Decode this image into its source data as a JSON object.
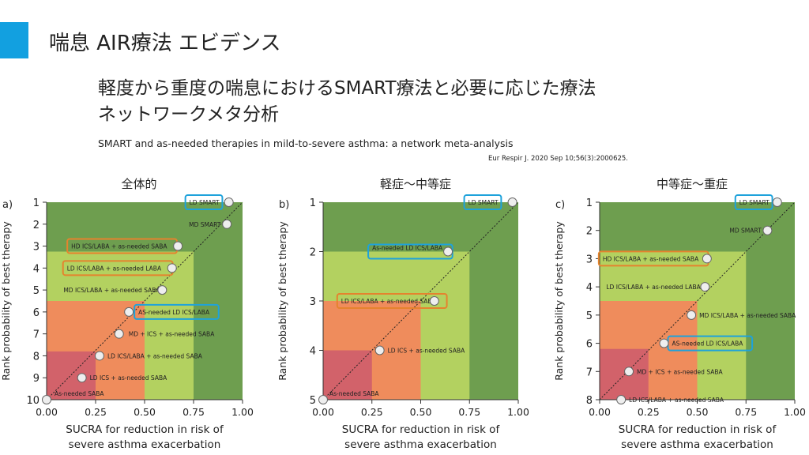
{
  "header": {
    "title": "喘息 AIR療法 エビデンス",
    "subtitle_line1": "軽度から重度の喘息におけるSMART療法と必要に応じた療法",
    "subtitle_line2": "ネットワークメタ分析",
    "english_title": "SMART and as-needed therapies in mild-to-severe asthma: a network meta-analysis",
    "reference": "Eur Respir J. 2020 Sep 10;56(3):2000625."
  },
  "colors": {
    "accent": "#12a0e0",
    "dark_green": "#6e9e4f",
    "light_green": "#b3d160",
    "orange": "#ef8c5c",
    "red": "#d2626a",
    "blue_box": "#1ea2db",
    "orange_box": "#e5832e"
  },
  "chart_data": [
    {
      "type": "scatter",
      "panel": "a)",
      "title": "全体的",
      "xlabel_line1": "SUCRA for reduction in risk of",
      "xlabel_line2": "severe asthma exacerbation",
      "ylabel": "Rank probability of best therapy",
      "xlim": [
        0,
        1
      ],
      "ylim": [
        10,
        1
      ],
      "xticks": [
        "0.00",
        "0.25",
        "0.50",
        "0.75",
        "1.00"
      ],
      "yticks": [
        "1",
        "2",
        "3",
        "4",
        "5",
        "6",
        "7",
        "8",
        "9",
        "10"
      ],
      "zone_ranks": [
        5.5,
        7.8,
        10
      ],
      "points": [
        {
          "label": "LD SMART",
          "x": 0.93,
          "y": 1,
          "box": "blue"
        },
        {
          "label": "MD SMART",
          "x": 0.92,
          "y": 2,
          "box": null
        },
        {
          "label": "HD ICS/LABA + as-needed SABA",
          "x": 0.67,
          "y": 3,
          "box": "orange"
        },
        {
          "label": "LD ICS/LABA + as-needed LABA",
          "x": 0.64,
          "y": 4,
          "box": "orange"
        },
        {
          "label": "MD ICS/LABA + as-needed SABA",
          "x": 0.59,
          "y": 5,
          "box": null
        },
        {
          "label": "AS-needed LD ICS/LABA",
          "x": 0.42,
          "y": 6,
          "box": "blue"
        },
        {
          "label": "MD + ICS + as-needed SABA",
          "x": 0.37,
          "y": 7,
          "box": null
        },
        {
          "label": "LD ICS/LABA + as-needed SABA",
          "x": 0.27,
          "y": 8,
          "box": null
        },
        {
          "label": "LD ICS + as-needed SABA",
          "x": 0.18,
          "y": 9,
          "box": null
        },
        {
          "label": "As-needed SABA",
          "x": 0.0,
          "y": 10,
          "box": null
        }
      ]
    },
    {
      "type": "scatter",
      "panel": "b)",
      "title": "軽症〜中等症",
      "xlabel_line1": "SUCRA for reduction in risk of",
      "xlabel_line2": "severe asthma exacerbation",
      "ylabel": "Rank probability of best therapy",
      "xlim": [
        0,
        1
      ],
      "ylim": [
        5,
        1
      ],
      "xticks": [
        "0.00",
        "0.25",
        "0.50",
        "0.75",
        "1.00"
      ],
      "yticks": [
        "1",
        "2",
        "3",
        "4",
        "5"
      ],
      "zone_ranks": [
        3,
        4,
        5
      ],
      "points": [
        {
          "label": "LD SMART",
          "x": 0.97,
          "y": 1,
          "box": "blue"
        },
        {
          "label": "As-needed LD ICS/LABA",
          "x": 0.64,
          "y": 2,
          "box": "blue"
        },
        {
          "label": "LD ICS/LABA + as-needed SABA",
          "x": 0.57,
          "y": 3,
          "box": "orange"
        },
        {
          "label": "LD ICS + as-needed SABA",
          "x": 0.29,
          "y": 4,
          "box": null
        },
        {
          "label": "As-needed SABA",
          "x": 0.0,
          "y": 5,
          "box": null
        }
      ]
    },
    {
      "type": "scatter",
      "panel": "c)",
      "title": "中等症〜重症",
      "xlabel_line1": "SUCRA for reduction in risk of",
      "xlabel_line2": "severe asthma exacerbation",
      "ylabel": "Rank probability of best therapy",
      "xlim": [
        0,
        1
      ],
      "ylim": [
        8,
        1
      ],
      "xticks": [
        "0.00",
        "0.25",
        "0.50",
        "0.75",
        "1.00"
      ],
      "yticks": [
        "1",
        "2",
        "3",
        "4",
        "5",
        "6",
        "7",
        "8"
      ],
      "zone_ranks": [
        4.5,
        6.2,
        8
      ],
      "points": [
        {
          "label": "LD SMART",
          "x": 0.91,
          "y": 1,
          "box": "blue"
        },
        {
          "label": "MD SMART",
          "x": 0.86,
          "y": 2,
          "box": null
        },
        {
          "label": "HD ICS/LABA + as-needed SABA",
          "x": 0.55,
          "y": 3,
          "box": "orange"
        },
        {
          "label": "LD ICS/LABA + as-needed LABA",
          "x": 0.54,
          "y": 4,
          "box": null
        },
        {
          "label": "MD ICS/LABA + as-needed SABA",
          "x": 0.47,
          "y": 5,
          "box": null
        },
        {
          "label": "AS-needed LD ICS/LABA",
          "x": 0.33,
          "y": 6,
          "box": "blue"
        },
        {
          "label": "MD + ICS + as-needed SABA",
          "x": 0.15,
          "y": 7,
          "box": null
        },
        {
          "label": "LD ICS/LABA + as-needed SABA",
          "x": 0.11,
          "y": 8,
          "box": null
        }
      ]
    }
  ]
}
